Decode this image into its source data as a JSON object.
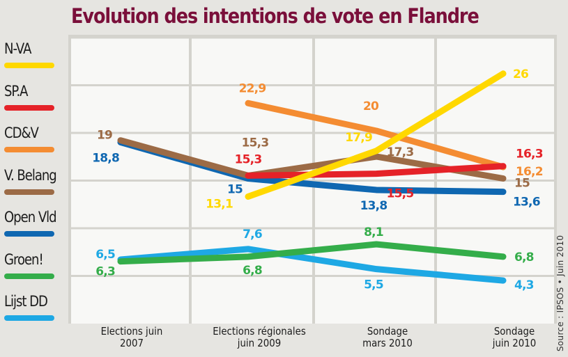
{
  "chart_data": {
    "type": "line",
    "title": "Evolution des intentions de vote en Flandre",
    "xlabel": "",
    "ylabel": "",
    "categories": [
      "Elections juin\n2007",
      "Elections régionales\njuin 2009",
      "Sondage\nmars 2010",
      "Sondage\njuin 2010"
    ],
    "ylim": [
      0,
      30
    ],
    "grid": true,
    "legend_position": "left",
    "series": [
      {
        "name": "N-VA",
        "color": "#ffd800",
        "values": [
          null,
          13.1,
          17.9,
          26
        ],
        "labels": [
          null,
          "13,1",
          "17,9",
          "26"
        ]
      },
      {
        "name": "SP.A",
        "color": "#e52228",
        "values": [
          null,
          15.3,
          15.5,
          16.3
        ],
        "labels": [
          null,
          "15,3",
          "15,5",
          "16,3"
        ]
      },
      {
        "name": "CD&V",
        "color": "#f48c32",
        "values": [
          null,
          22.9,
          20,
          16.2
        ],
        "labels": [
          null,
          "22,9",
          "20",
          "16,2"
        ]
      },
      {
        "name": "V. Belang",
        "color": "#9c6b46",
        "values": [
          19,
          15.3,
          17.3,
          15
        ],
        "labels": [
          "19",
          "15,3",
          "17,3",
          "15"
        ]
      },
      {
        "name": "Open Vld",
        "color": "#0f67b1",
        "values": [
          18.8,
          15,
          13.8,
          13.6
        ],
        "labels": [
          "18,8",
          "15",
          "13,8",
          "13,6"
        ]
      },
      {
        "name": "Groen!",
        "color": "#34ad4a",
        "values": [
          6.3,
          6.8,
          8.1,
          6.8
        ],
        "labels": [
          "6,3",
          "6,8",
          "8,1",
          "6,8"
        ]
      },
      {
        "name": "Lijst DD",
        "color": "#1ea8e4",
        "values": [
          6.5,
          7.6,
          5.5,
          4.3
        ],
        "labels": [
          "6,5",
          "7,6",
          "5,5",
          "4,3"
        ]
      }
    ],
    "source": "Source : IPSOS • Juin 2010"
  },
  "colors": {
    "title": "#7a0f3a",
    "plot_background": "#f8f8f6",
    "grid": "#d4d3cd",
    "page_background": "#e6e5e1"
  }
}
